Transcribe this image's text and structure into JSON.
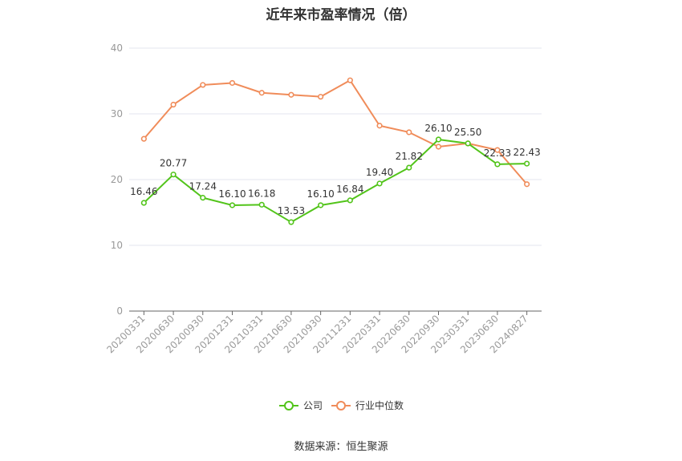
{
  "chart_data": {
    "type": "line",
    "title": "近年来市盈率情况（倍）",
    "categories": [
      "20200331",
      "20200630",
      "20200930",
      "20201231",
      "20210331",
      "20210630",
      "20210930",
      "20211231",
      "20220331",
      "20220630",
      "20220930",
      "20230331",
      "20230630",
      "20240827"
    ],
    "series": [
      {
        "name": "公司",
        "color": "#52c41a",
        "values": [
          16.46,
          20.77,
          17.24,
          16.1,
          16.18,
          13.53,
          16.1,
          16.84,
          19.4,
          21.82,
          26.1,
          25.5,
          22.33,
          22.43
        ]
      },
      {
        "name": "行业中位数",
        "color": "#f08c5a",
        "values": [
          26.2,
          31.4,
          34.4,
          34.7,
          33.2,
          32.9,
          32.6,
          35.1,
          28.2,
          27.2,
          25.0,
          25.5,
          24.5,
          19.3
        ]
      }
    ],
    "ylim": [
      0,
      40
    ],
    "yticks": [
      0,
      10,
      20,
      30,
      40
    ],
    "grid": true,
    "legend_position": "bottom"
  },
  "source": "数据来源：恒生聚源"
}
